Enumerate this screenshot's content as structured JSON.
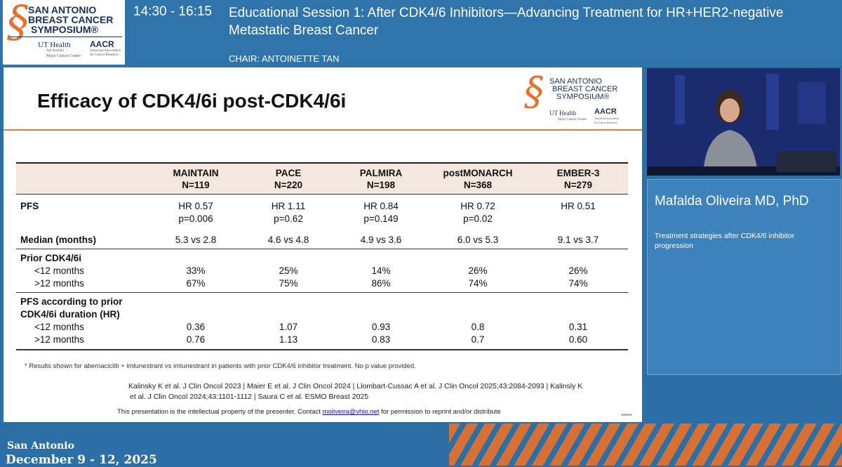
{
  "header": {
    "logo_text": [
      "SAN ANTONIO",
      "BREAST CANCER",
      "SYMPOSIUM®"
    ],
    "logo_partner_1": "UT Health",
    "logo_partner_1_sub": [
      "San Antonio",
      "Mays Cancer Center"
    ],
    "logo_partner_2": "AACR",
    "logo_partner_2_sub": [
      "American Association",
      "for Cancer Research"
    ],
    "time": "14:30 - 16:15",
    "title": "Educational Session 1: After CDK4/6 Inhibitors—Advancing Treatment for HR+HER2-negative Metastatic Breast Cancer",
    "chair": "CHAIR: ANTOINETTE TAN"
  },
  "slide": {
    "title": "Efficacy of CDK4/6i post-CDK4/6i",
    "table": {
      "columns": [
        {
          "name": "MAINTAIN",
          "n": "N=119"
        },
        {
          "name": "PACE",
          "n": "N=220"
        },
        {
          "name": "PALMIRA",
          "n": "N=198"
        },
        {
          "name": "postMONARCH",
          "n": "N=368"
        },
        {
          "name": "EMBER-3",
          "n": "N=279"
        }
      ],
      "pfs": {
        "label": "PFS",
        "hr": [
          "HR 0.57",
          "HR 1.11",
          "HR 0.84",
          "HR 0.72",
          "HR 0.51"
        ],
        "p": [
          "p=0.006",
          "p=0.62",
          "p=0.149",
          "p=0.02",
          ""
        ]
      },
      "median": {
        "label": "Median (months)",
        "values": [
          "5.3 vs 2.8",
          "4.6 vs 4.8",
          "4.9 vs 3.6",
          "6.0 vs 5.3",
          "9.1 vs 3.7"
        ]
      },
      "prior": {
        "label": "Prior CDK4/6i",
        "lt12_label": "<12 months",
        "lt12": [
          "33%",
          "25%",
          "14%",
          "26%",
          "26%"
        ],
        "gt12_label": ">12 months",
        "gt12": [
          "67%",
          "75%",
          "86%",
          "74%",
          "74%"
        ]
      },
      "pfs_prior": {
        "label_1": "PFS according to prior",
        "label_2": "CDK4/6i duration (HR)",
        "lt12_label": "<12 months",
        "lt12": [
          "0.36",
          "1.07",
          "0.93",
          "0.8",
          "0.31"
        ],
        "gt12_label": ">12 months",
        "gt12": [
          "0.76",
          "1.13",
          "0.83",
          "0.7",
          "0.60"
        ]
      }
    },
    "footnote": "* Results shown for abemaciclib + imlunestrant vs imlunestrant in patients with prior CDK4/6 inhibitor treatment. No p value provided.",
    "references_1": "Kalinsky K et al. J Clin Oncol 2023 | Maier E et al. J Clin Oncol 2024 | Llombart-Cussac A et al. J Clin Oncol 2025;43:2084-2093 | Kalinsly K",
    "references_2": "et al. J Clin Oncol 2024;43:1101-1112 | Saura C et al. ESMO Breast 2025",
    "ip_notice_before": "This presentation is the intellectual property of the presenter. Contact ",
    "ip_email": "moliveira@vhio.net",
    "ip_notice_after": " for permission to reprint and/or distribute"
  },
  "speaker": {
    "name": "Mafalda Oliveira MD, PhD",
    "talk": "Treatment strategies after CDK4/6 inhibitor progression"
  },
  "footer": {
    "city": "San Antonio",
    "dates": "December 9 - 12, 2025"
  },
  "colors": {
    "brand_blue": "#2f74ab",
    "accent_orange": "#e8702a",
    "table_header_bg": "#f4e7dd"
  }
}
